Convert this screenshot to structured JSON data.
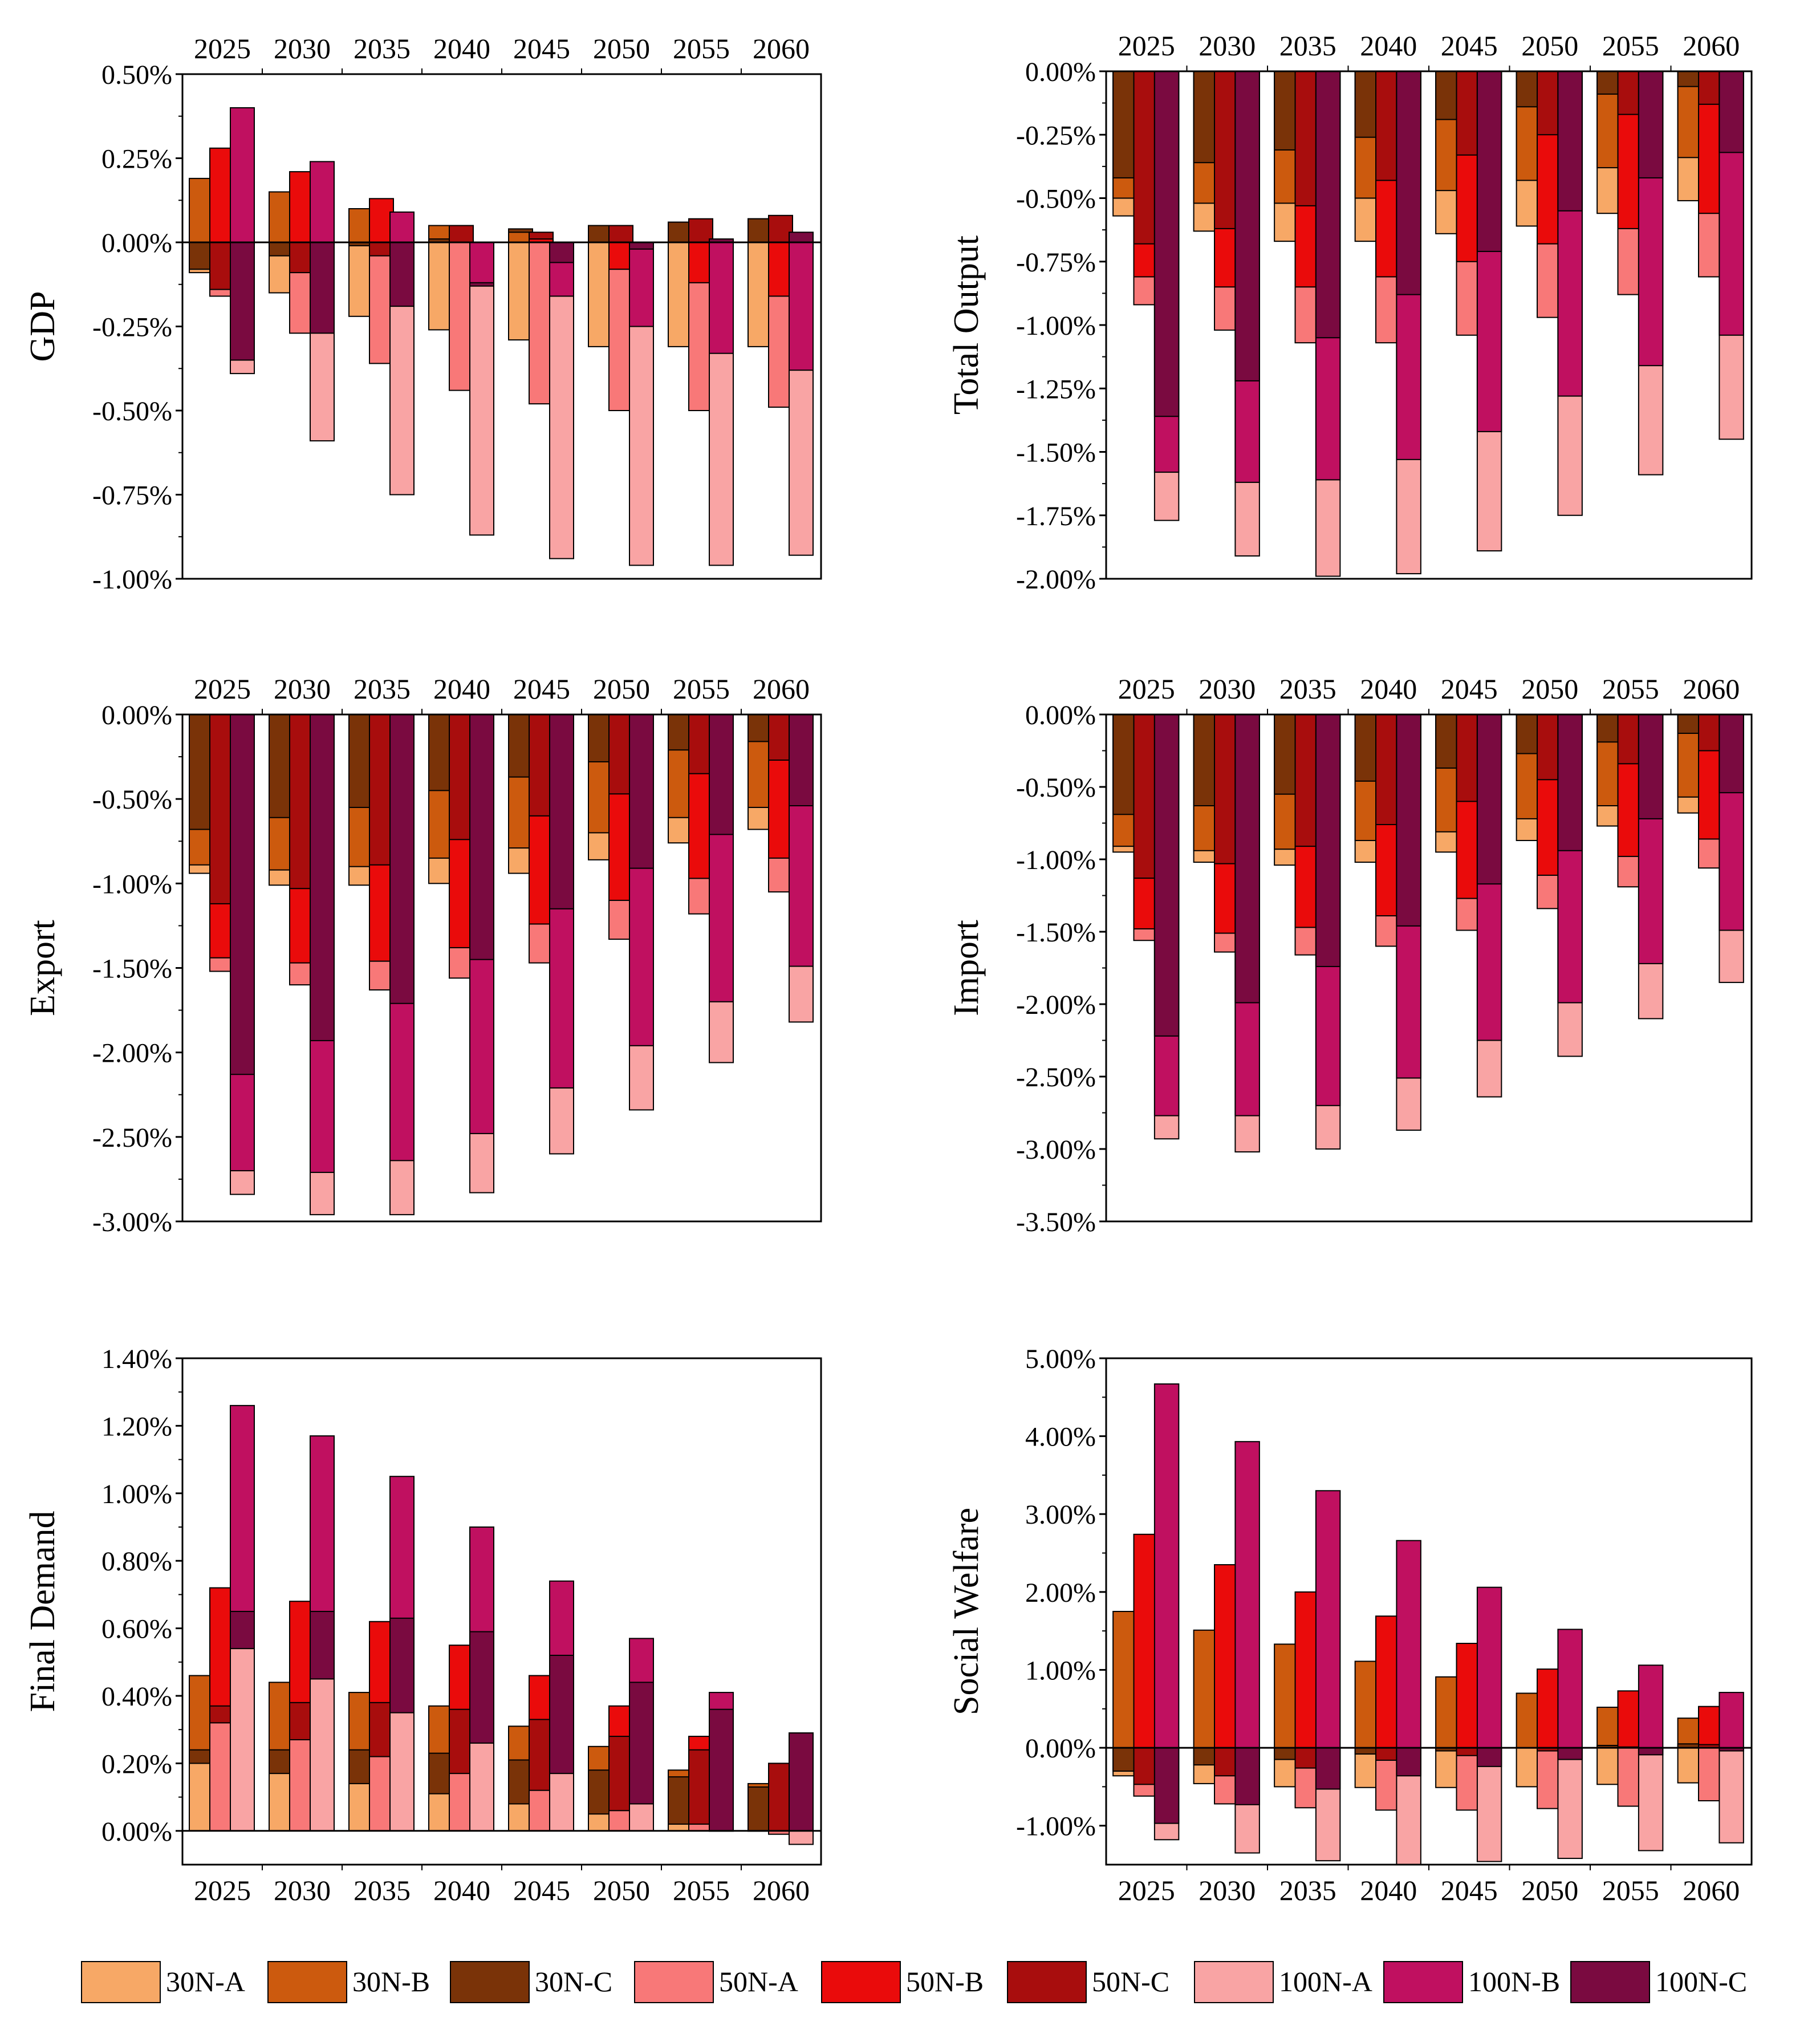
{
  "years": [
    "2025",
    "2030",
    "2035",
    "2040",
    "2045",
    "2050",
    "2055",
    "2060"
  ],
  "colors": {
    "30N-A": "#f7a866",
    "30N-B": "#cc5a0e",
    "30N-C": "#7a3308",
    "50N-A": "#f87878",
    "50N-B": "#ea0b0b",
    "50N-C": "#a80d0d",
    "100N-A": "#f9a4a4",
    "100N-B": "#c01060",
    "100N-C": "#7a0a40"
  },
  "legend": {
    "items": [
      {
        "label": "30N-A",
        "color": "#f7a866"
      },
      {
        "label": "30N-B",
        "color": "#cc5a0e"
      },
      {
        "label": "30N-C",
        "color": "#7a3308"
      },
      {
        "label": "50N-A",
        "color": "#f87878"
      },
      {
        "label": "50N-B",
        "color": "#ea0b0b"
      },
      {
        "label": "50N-C",
        "color": "#a80d0d"
      },
      {
        "label": "100N-A",
        "color": "#f9a4a4"
      },
      {
        "label": "100N-B",
        "color": "#c01060"
      },
      {
        "label": "100N-C",
        "color": "#7a0a40"
      }
    ]
  },
  "chart_data": [
    {
      "type": "bar",
      "title": "",
      "ylabel": "GDP",
      "xaxis_position": "top",
      "ylim": [
        -1.0,
        0.5
      ],
      "yticks": [
        0.5,
        0.25,
        0,
        -0.25,
        -0.5,
        -0.75,
        -1.0
      ],
      "ytick_labels": [
        "0.50%",
        "0.25%",
        "0.00%",
        "-0.25%",
        "-0.50%",
        "-0.75%",
        "-1.00%"
      ],
      "categories": [
        "2025",
        "2030",
        "2035",
        "2040",
        "2045",
        "2050",
        "2055",
        "2060"
      ],
      "series": [
        {
          "name": "30N-A",
          "values": [
            -0.09,
            -0.15,
            -0.22,
            -0.26,
            -0.29,
            -0.31,
            -0.31,
            -0.31
          ]
        },
        {
          "name": "30N-B",
          "values": [
            0.19,
            0.15,
            0.1,
            0.05,
            0.03,
            0.05,
            0.06,
            0.07
          ]
        },
        {
          "name": "30N-C",
          "values": [
            -0.08,
            -0.04,
            -0.01,
            0.01,
            0.04,
            0.05,
            0.06,
            0.07
          ]
        },
        {
          "name": "50N-A",
          "values": [
            -0.16,
            -0.27,
            -0.36,
            -0.44,
            -0.48,
            -0.5,
            -0.5,
            -0.49
          ]
        },
        {
          "name": "50N-B",
          "values": [
            0.28,
            0.21,
            0.13,
            0.05,
            0.01,
            -0.08,
            -0.12,
            -0.16
          ]
        },
        {
          "name": "50N-C",
          "values": [
            -0.14,
            -0.09,
            -0.04,
            0.05,
            0.03,
            0.05,
            0.07,
            0.08
          ]
        },
        {
          "name": "100N-A",
          "values": [
            -0.39,
            -0.59,
            -0.75,
            -0.87,
            -0.94,
            -0.96,
            -0.96,
            -0.93
          ]
        },
        {
          "name": "100N-B",
          "values": [
            0.4,
            0.24,
            0.09,
            -0.12,
            -0.16,
            -0.25,
            -0.33,
            -0.38
          ]
        },
        {
          "name": "100N-C",
          "values": [
            -0.35,
            -0.27,
            -0.19,
            -0.13,
            -0.06,
            -0.02,
            0.01,
            0.03
          ]
        }
      ]
    },
    {
      "type": "bar",
      "title": "",
      "ylabel": "Total Output",
      "xaxis_position": "top",
      "ylim": [
        -2.0,
        0.0
      ],
      "yticks": [
        0,
        -0.25,
        -0.5,
        -0.75,
        -1.0,
        -1.25,
        -1.5,
        -1.75,
        -2.0
      ],
      "ytick_labels": [
        "0.00%",
        "-0.25%",
        "-0.50%",
        "-0.75%",
        "-1.00%",
        "-1.25%",
        "-1.50%",
        "-1.75%",
        "-2.00%"
      ],
      "categories": [
        "2025",
        "2030",
        "2035",
        "2040",
        "2045",
        "2050",
        "2055",
        "2060"
      ],
      "series": [
        {
          "name": "30N-A",
          "values": [
            -0.57,
            -0.63,
            -0.67,
            -0.67,
            -0.64,
            -0.61,
            -0.56,
            -0.51
          ]
        },
        {
          "name": "30N-B",
          "values": [
            -0.5,
            -0.52,
            -0.52,
            -0.5,
            -0.47,
            -0.43,
            -0.38,
            -0.34
          ]
        },
        {
          "name": "30N-C",
          "values": [
            -0.42,
            -0.36,
            -0.31,
            -0.26,
            -0.19,
            -0.14,
            -0.09,
            -0.06
          ]
        },
        {
          "name": "50N-A",
          "values": [
            -0.92,
            -1.02,
            -1.07,
            -1.07,
            -1.04,
            -0.97,
            -0.88,
            -0.81
          ]
        },
        {
          "name": "50N-B",
          "values": [
            -0.81,
            -0.85,
            -0.85,
            -0.81,
            -0.75,
            -0.68,
            -0.62,
            -0.56
          ]
        },
        {
          "name": "50N-C",
          "values": [
            -0.68,
            -0.62,
            -0.53,
            -0.43,
            -0.33,
            -0.25,
            -0.17,
            -0.13
          ]
        },
        {
          "name": "100N-A",
          "values": [
            -1.77,
            -1.91,
            -1.99,
            -1.98,
            -1.89,
            -1.75,
            -1.59,
            -1.45
          ]
        },
        {
          "name": "100N-B",
          "values": [
            -1.58,
            -1.62,
            -1.61,
            -1.53,
            -1.42,
            -1.28,
            -1.16,
            -1.04
          ]
        },
        {
          "name": "100N-C",
          "values": [
            -1.36,
            -1.22,
            -1.05,
            -0.88,
            -0.71,
            -0.55,
            -0.42,
            -0.32
          ]
        }
      ]
    },
    {
      "type": "bar",
      "title": "",
      "ylabel": "Export",
      "xaxis_position": "top",
      "ylim": [
        -3.0,
        0.0
      ],
      "yticks": [
        0,
        -0.5,
        -1.0,
        -1.5,
        -2.0,
        -2.5,
        -3.0
      ],
      "ytick_labels": [
        "0.00%",
        "-0.50%",
        "-1.00%",
        "-1.50%",
        "-2.00%",
        "-2.50%",
        "-3.00%"
      ],
      "categories": [
        "2025",
        "2030",
        "2035",
        "2040",
        "2045",
        "2050",
        "2055",
        "2060"
      ],
      "series": [
        {
          "name": "30N-A",
          "values": [
            -0.94,
            -1.01,
            -1.01,
            -1.0,
            -0.94,
            -0.86,
            -0.76,
            -0.68
          ]
        },
        {
          "name": "30N-B",
          "values": [
            -0.89,
            -0.92,
            -0.9,
            -0.85,
            -0.79,
            -0.7,
            -0.61,
            -0.55
          ]
        },
        {
          "name": "30N-C",
          "values": [
            -0.68,
            -0.61,
            -0.55,
            -0.45,
            -0.37,
            -0.28,
            -0.21,
            -0.16
          ]
        },
        {
          "name": "50N-A",
          "values": [
            -1.52,
            -1.6,
            -1.63,
            -1.56,
            -1.47,
            -1.33,
            -1.18,
            -1.05
          ]
        },
        {
          "name": "50N-B",
          "values": [
            -1.44,
            -1.47,
            -1.46,
            -1.38,
            -1.24,
            -1.1,
            -0.97,
            -0.85
          ]
        },
        {
          "name": "50N-C",
          "values": [
            -1.12,
            -1.03,
            -0.89,
            -0.74,
            -0.6,
            -0.47,
            -0.35,
            -0.27
          ]
        },
        {
          "name": "100N-A",
          "values": [
            -2.84,
            -2.96,
            -2.96,
            -2.83,
            -2.6,
            -2.34,
            -2.06,
            -1.82
          ]
        },
        {
          "name": "100N-B",
          "values": [
            -2.7,
            -2.71,
            -2.64,
            -2.48,
            -2.21,
            -1.96,
            -1.7,
            -1.49
          ]
        },
        {
          "name": "100N-C",
          "values": [
            -2.13,
            -1.93,
            -1.71,
            -1.45,
            -1.15,
            -0.91,
            -0.71,
            -0.54
          ]
        }
      ]
    },
    {
      "type": "bar",
      "title": "",
      "ylabel": "Import",
      "xaxis_position": "top",
      "ylim": [
        -3.5,
        0.0
      ],
      "yticks": [
        0,
        -0.5,
        -1.0,
        -1.5,
        -2.0,
        -2.5,
        -3.0,
        -3.5
      ],
      "ytick_labels": [
        "0.00%",
        "-0.50%",
        "-1.00%",
        "-1.50%",
        "-2.00%",
        "-2.50%",
        "-3.00%",
        "-3.50%"
      ],
      "categories": [
        "2025",
        "2030",
        "2035",
        "2040",
        "2045",
        "2050",
        "2055",
        "2060"
      ],
      "series": [
        {
          "name": "30N-A",
          "values": [
            -0.95,
            -1.02,
            -1.04,
            -1.02,
            -0.95,
            -0.87,
            -0.77,
            -0.68
          ]
        },
        {
          "name": "30N-B",
          "values": [
            -0.91,
            -0.94,
            -0.93,
            -0.87,
            -0.81,
            -0.72,
            -0.63,
            -0.57
          ]
        },
        {
          "name": "30N-C",
          "values": [
            -0.69,
            -0.63,
            -0.55,
            -0.46,
            -0.37,
            -0.27,
            -0.19,
            -0.13
          ]
        },
        {
          "name": "50N-A",
          "values": [
            -1.56,
            -1.64,
            -1.66,
            -1.6,
            -1.49,
            -1.34,
            -1.19,
            -1.06
          ]
        },
        {
          "name": "50N-B",
          "values": [
            -1.48,
            -1.51,
            -1.47,
            -1.39,
            -1.27,
            -1.11,
            -0.98,
            -0.86
          ]
        },
        {
          "name": "50N-C",
          "values": [
            -1.13,
            -1.03,
            -0.91,
            -0.76,
            -0.6,
            -0.45,
            -0.34,
            -0.25
          ]
        },
        {
          "name": "100N-A",
          "values": [
            -2.93,
            -3.02,
            -3.0,
            -2.87,
            -2.64,
            -2.36,
            -2.1,
            -1.85
          ]
        },
        {
          "name": "100N-B",
          "values": [
            -2.77,
            -2.77,
            -2.7,
            -2.51,
            -2.25,
            -1.99,
            -1.72,
            -1.49
          ]
        },
        {
          "name": "100N-C",
          "values": [
            -2.22,
            -1.99,
            -1.74,
            -1.46,
            -1.17,
            -0.94,
            -0.72,
            -0.54
          ]
        }
      ]
    },
    {
      "type": "bar",
      "title": "",
      "ylabel": "Final Demand",
      "xaxis_position": "bottom",
      "ylim": [
        -0.1,
        1.4
      ],
      "yticks": [
        1.4,
        1.2,
        1.0,
        0.8,
        0.6,
        0.4,
        0.2,
        0
      ],
      "ytick_labels": [
        "1.40%",
        "1.20%",
        "1.00%",
        "0.80%",
        "0.60%",
        "0.40%",
        "0.20%",
        "0.00%"
      ],
      "categories": [
        "2025",
        "2030",
        "2035",
        "2040",
        "2045",
        "2050",
        "2055",
        "2060"
      ],
      "series": [
        {
          "name": "30N-A",
          "values": [
            0.2,
            0.17,
            0.14,
            0.11,
            0.08,
            0.05,
            0.02,
            0.0
          ]
        },
        {
          "name": "30N-B",
          "values": [
            0.46,
            0.44,
            0.41,
            0.37,
            0.31,
            0.25,
            0.18,
            0.14
          ]
        },
        {
          "name": "30N-C",
          "values": [
            0.24,
            0.24,
            0.24,
            0.23,
            0.21,
            0.18,
            0.16,
            0.13
          ]
        },
        {
          "name": "50N-A",
          "values": [
            0.32,
            0.27,
            0.22,
            0.17,
            0.12,
            0.06,
            0.02,
            -0.01
          ]
        },
        {
          "name": "50N-B",
          "values": [
            0.72,
            0.68,
            0.62,
            0.55,
            0.46,
            0.37,
            0.28,
            0.2
          ]
        },
        {
          "name": "50N-C",
          "values": [
            0.37,
            0.38,
            0.38,
            0.36,
            0.33,
            0.28,
            0.24,
            0.2
          ]
        },
        {
          "name": "100N-A",
          "values": [
            0.54,
            0.45,
            0.35,
            0.26,
            0.17,
            0.08,
            0.0,
            -0.04
          ]
        },
        {
          "name": "100N-B",
          "values": [
            1.26,
            1.17,
            1.05,
            0.9,
            0.74,
            0.57,
            0.41,
            0.29
          ]
        },
        {
          "name": "100N-C",
          "values": [
            0.65,
            0.65,
            0.63,
            0.59,
            0.52,
            0.44,
            0.36,
            0.29
          ]
        }
      ]
    },
    {
      "type": "bar",
      "title": "",
      "ylabel": "Social Welfare",
      "xaxis_position": "bottom",
      "ylim": [
        -1.5,
        5.0
      ],
      "yticks": [
        5,
        4,
        3,
        2,
        1,
        0,
        -1
      ],
      "ytick_labels": [
        "5.00%",
        "4.00%",
        "3.00%",
        "2.00%",
        "1.00%",
        "0.00%",
        "-1.00%"
      ],
      "categories": [
        "2025",
        "2030",
        "2035",
        "2040",
        "2045",
        "2050",
        "2055",
        "2060"
      ],
      "series": [
        {
          "name": "30N-A",
          "values": [
            -0.36,
            -0.46,
            -0.5,
            -0.51,
            -0.51,
            -0.5,
            -0.47,
            -0.45
          ]
        },
        {
          "name": "30N-B",
          "values": [
            1.75,
            1.51,
            1.33,
            1.11,
            0.91,
            0.7,
            0.52,
            0.38
          ]
        },
        {
          "name": "30N-C",
          "values": [
            -0.3,
            -0.22,
            -0.15,
            -0.08,
            -0.04,
            0.0,
            0.03,
            0.05
          ]
        },
        {
          "name": "50N-A",
          "values": [
            -0.62,
            -0.72,
            -0.77,
            -0.8,
            -0.8,
            -0.78,
            -0.75,
            -0.68
          ]
        },
        {
          "name": "50N-B",
          "values": [
            2.74,
            2.35,
            2.0,
            1.69,
            1.34,
            1.01,
            0.73,
            0.53
          ]
        },
        {
          "name": "50N-C",
          "values": [
            -0.47,
            -0.36,
            -0.26,
            -0.16,
            -0.1,
            -0.04,
            0.01,
            0.04
          ]
        },
        {
          "name": "100N-A",
          "values": [
            -1.18,
            -1.35,
            -1.45,
            -1.5,
            -1.46,
            -1.42,
            -1.32,
            -1.22
          ]
        },
        {
          "name": "100N-B",
          "values": [
            4.67,
            3.93,
            3.3,
            2.66,
            2.06,
            1.52,
            1.06,
            0.71
          ]
        },
        {
          "name": "100N-C",
          "values": [
            -0.97,
            -0.73,
            -0.53,
            -0.36,
            -0.24,
            -0.15,
            -0.09,
            -0.04
          ]
        }
      ]
    }
  ]
}
